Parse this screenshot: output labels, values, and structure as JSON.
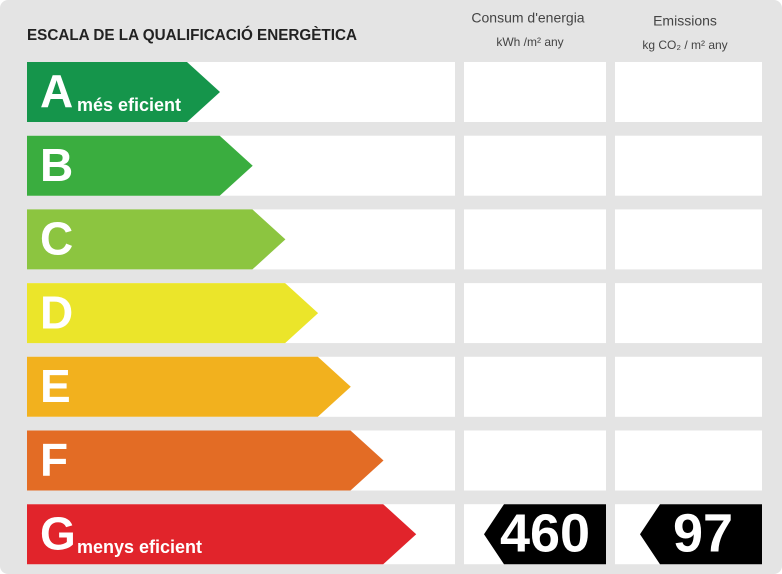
{
  "header": {
    "title": "ESCALA DE LA QUALIFICACIÓ ENERGÈTICA",
    "columns": [
      {
        "title": "Consum d'energia",
        "unit": "kWh /m² any"
      },
      {
        "title": "Emissions",
        "unit": "kg CO₂ / m² any"
      }
    ]
  },
  "rows": [
    {
      "letter": "A",
      "label": "més eficient",
      "color": "#15954b"
    },
    {
      "letter": "B",
      "color": "#3aad3f"
    },
    {
      "letter": "C",
      "color": "#8cc540"
    },
    {
      "letter": "D",
      "color": "#ebe52a"
    },
    {
      "letter": "E",
      "color": "#f2b11e"
    },
    {
      "letter": "F",
      "color": "#e36c25"
    },
    {
      "letter": "G",
      "label": "menys eficient",
      "color": "#e1242b",
      "consumption": 460,
      "emissions": 97
    }
  ]
}
